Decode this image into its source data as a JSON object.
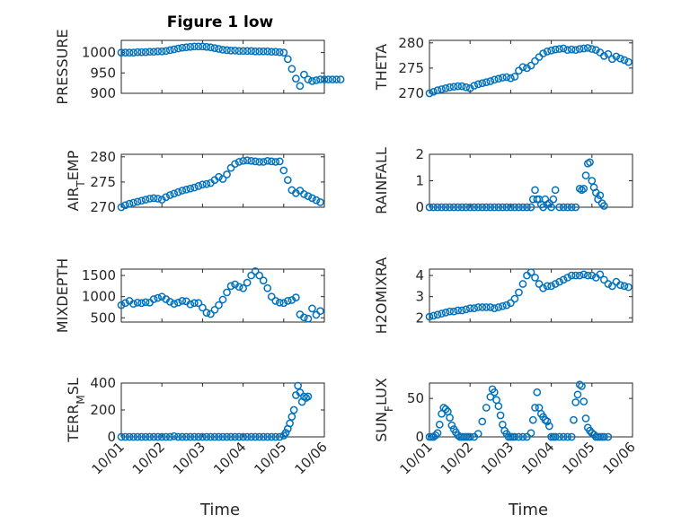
{
  "figure": {
    "title": "Figure 1 low",
    "xlabel_text": "Time"
  },
  "colors": {
    "series": "#0072bd",
    "axes": "#262626",
    "grid": "#c8c8c8"
  },
  "chart_data": [
    {
      "id": "pressure",
      "type": "scatter",
      "ylabel": "PRESSURE",
      "ylabel_parts": [
        {
          "t": "PRESSURE",
          "sub": false
        }
      ],
      "xlim": [
        0,
        5
      ],
      "ylim": [
        900,
        1030
      ],
      "yticks": [
        900,
        950,
        1000
      ],
      "yticklabels": [
        "900",
        "950",
        "1000"
      ],
      "xticks": [
        0,
        1,
        2,
        3,
        4,
        5
      ],
      "xticklabels": [
        "10/01",
        "10/02",
        "10/03",
        "10/04",
        "10/05",
        "10/06"
      ],
      "show_xticklabels": false,
      "title": "Figure 1 low",
      "x": [
        0,
        0.1,
        0.2,
        0.3,
        0.4,
        0.5,
        0.6,
        0.7,
        0.8,
        0.9,
        1.0,
        1.1,
        1.2,
        1.3,
        1.4,
        1.5,
        1.6,
        1.7,
        1.8,
        1.9,
        2.0,
        2.1,
        2.2,
        2.3,
        2.4,
        2.5,
        2.6,
        2.7,
        2.8,
        2.9,
        3.0,
        3.1,
        3.2,
        3.3,
        3.4,
        3.5,
        3.6,
        3.7,
        3.8,
        3.9,
        4.0,
        4.1,
        4.2,
        4.3,
        4.4,
        4.5,
        4.6,
        4.7,
        4.8,
        4.9,
        5.0,
        5.1,
        5.2,
        5.3,
        5.4
      ],
      "y": [
        1000,
        1000,
        1000,
        1000,
        1001,
        1001,
        1001,
        1002,
        1002,
        1003,
        1003,
        1004,
        1006,
        1008,
        1010,
        1012,
        1013,
        1014,
        1015,
        1015,
        1015,
        1014,
        1013,
        1011,
        1009,
        1007,
        1006,
        1005,
        1005,
        1004,
        1004,
        1004,
        1004,
        1003,
        1003,
        1003,
        1003,
        1002,
        1002,
        1001,
        1000,
        984,
        960,
        936,
        918,
        946,
        934,
        930,
        932,
        934,
        934,
        934,
        934,
        934,
        934
      ]
    },
    {
      "id": "theta",
      "type": "scatter",
      "ylabel": "THETA",
      "ylabel_parts": [
        {
          "t": "THETA",
          "sub": false
        }
      ],
      "xlim": [
        0,
        5
      ],
      "ylim": [
        270,
        280.5
      ],
      "yticks": [
        270,
        275,
        280
      ],
      "yticklabels": [
        "270",
        "275",
        "280"
      ],
      "xticks": [
        0,
        1,
        2,
        3,
        4,
        5
      ],
      "xticklabels": [
        "10/01",
        "10/02",
        "10/03",
        "10/04",
        "10/05",
        "10/06"
      ],
      "show_xticklabels": false,
      "x": [
        0,
        0.1,
        0.2,
        0.3,
        0.4,
        0.5,
        0.6,
        0.7,
        0.8,
        0.9,
        1.0,
        1.1,
        1.2,
        1.3,
        1.4,
        1.5,
        1.6,
        1.7,
        1.8,
        1.9,
        2.0,
        2.1,
        2.2,
        2.3,
        2.4,
        2.5,
        2.6,
        2.7,
        2.8,
        2.9,
        3.0,
        3.1,
        3.2,
        3.3,
        3.4,
        3.5,
        3.6,
        3.7,
        3.8,
        3.9,
        4.0,
        4.1,
        4.2,
        4.3,
        4.4,
        4.5,
        4.6,
        4.7,
        4.8,
        4.9
      ],
      "y": [
        270,
        270.3,
        270.6,
        270.8,
        271.0,
        271.2,
        271.3,
        271.4,
        271.4,
        271.2,
        271.0,
        271.5,
        271.8,
        272.0,
        272.2,
        272.4,
        272.7,
        272.9,
        273.1,
        273.2,
        273.0,
        273.3,
        274.5,
        275.2,
        275.0,
        275.5,
        276.4,
        277.2,
        277.9,
        278.3,
        278.5,
        278.7,
        278.8,
        278.9,
        278.6,
        278.7,
        278.6,
        278.8,
        278.9,
        279.0,
        278.8,
        278.6,
        278.1,
        277.4,
        277.8,
        276.8,
        277.3,
        276.9,
        276.6,
        276.2
      ]
    },
    {
      "id": "air_temp",
      "type": "scatter",
      "ylabel": "AIR_TEMP",
      "ylabel_parts": [
        {
          "t": "AIR",
          "sub": false
        },
        {
          "t": "T",
          "sub": true
        },
        {
          "t": "EMP",
          "sub": false
        }
      ],
      "xlim": [
        0,
        5
      ],
      "ylim": [
        270,
        280.5
      ],
      "yticks": [
        270,
        275,
        280
      ],
      "yticklabels": [
        "270",
        "275",
        "280"
      ],
      "xticks": [
        0,
        1,
        2,
        3,
        4,
        5
      ],
      "xticklabels": [
        "10/01",
        "10/02",
        "10/03",
        "10/04",
        "10/05",
        "10/06"
      ],
      "show_xticklabels": false,
      "x": [
        0,
        0.1,
        0.2,
        0.3,
        0.4,
        0.5,
        0.6,
        0.7,
        0.8,
        0.9,
        1.0,
        1.1,
        1.2,
        1.3,
        1.4,
        1.5,
        1.6,
        1.7,
        1.8,
        1.9,
        2.0,
        2.1,
        2.2,
        2.3,
        2.4,
        2.5,
        2.6,
        2.7,
        2.8,
        2.9,
        3.0,
        3.1,
        3.2,
        3.3,
        3.4,
        3.5,
        3.6,
        3.7,
        3.8,
        3.9,
        4.0,
        4.1,
        4.2,
        4.3,
        4.4,
        4.5,
        4.6,
        4.7,
        4.8,
        4.9
      ],
      "y": [
        270,
        270.4,
        270.7,
        270.9,
        271.1,
        271.3,
        271.5,
        271.7,
        271.8,
        271.7,
        271.5,
        272.0,
        272.4,
        272.7,
        273.0,
        273.3,
        273.5,
        273.7,
        273.9,
        274.2,
        274.5,
        274.6,
        274.8,
        275.4,
        276.0,
        275.6,
        276.5,
        277.8,
        278.6,
        279.0,
        279.2,
        279.3,
        279.2,
        279.1,
        279.0,
        279.0,
        279.2,
        279.1,
        279.0,
        279.1,
        277.3,
        275.4,
        273.4,
        272.8,
        273.3,
        272.6,
        272.2,
        271.8,
        271.4,
        271.0
      ]
    },
    {
      "id": "rainfall",
      "type": "scatter",
      "ylabel": "RAINFALL",
      "ylabel_parts": [
        {
          "t": "RAINFALL",
          "sub": false
        }
      ],
      "xlim": [
        0,
        5
      ],
      "ylim": [
        0,
        2
      ],
      "yticks": [
        0,
        1,
        2
      ],
      "yticklabels": [
        "0",
        "1",
        "2"
      ],
      "xticks": [
        0,
        1,
        2,
        3,
        4,
        5
      ],
      "xticklabels": [
        "10/01",
        "10/02",
        "10/03",
        "10/04",
        "10/05",
        "10/06"
      ],
      "show_xticklabels": false,
      "x": [
        0,
        0.1,
        0.2,
        0.3,
        0.4,
        0.5,
        0.6,
        0.7,
        0.8,
        0.9,
        1.0,
        1.1,
        1.2,
        1.3,
        1.4,
        1.5,
        1.6,
        1.7,
        1.8,
        1.9,
        2.0,
        2.1,
        2.2,
        2.3,
        2.4,
        2.5,
        2.55,
        2.6,
        2.65,
        2.7,
        2.75,
        2.8,
        2.85,
        2.9,
        2.95,
        3.0,
        3.05,
        3.1,
        3.2,
        3.3,
        3.4,
        3.5,
        3.6,
        3.7,
        3.75,
        3.8,
        3.85,
        3.9,
        3.95,
        4.0,
        4.05,
        4.1,
        4.15,
        4.2,
        4.25,
        4.3
      ],
      "y": [
        0,
        0,
        0,
        0,
        0,
        0,
        0,
        0,
        0,
        0,
        0,
        0,
        0,
        0,
        0,
        0,
        0,
        0,
        0,
        0,
        0,
        0,
        0,
        0,
        0,
        0,
        0.3,
        0.65,
        0.3,
        0.3,
        0.1,
        0,
        0.3,
        0.1,
        0.15,
        0,
        0.3,
        0.65,
        0,
        0,
        0,
        0,
        0,
        0.7,
        0.65,
        0.7,
        1.2,
        1.65,
        1.7,
        1.0,
        0.75,
        0.55,
        0.3,
        0.45,
        0.15,
        0.05
      ]
    },
    {
      "id": "mixdepth",
      "type": "scatter",
      "ylabel": "MIXDEPTH",
      "ylabel_parts": [
        {
          "t": "MIXDEPTH",
          "sub": false
        }
      ],
      "xlim": [
        0,
        5
      ],
      "ylim": [
        400,
        1650
      ],
      "yticks": [
        500,
        1000,
        1500
      ],
      "yticklabels": [
        "500",
        "1000",
        "1500"
      ],
      "xticks": [
        0,
        1,
        2,
        3,
        4,
        5
      ],
      "xticklabels": [
        "10/01",
        "10/02",
        "10/03",
        "10/04",
        "10/05",
        "10/06"
      ],
      "show_xticklabels": false,
      "x": [
        0,
        0.1,
        0.2,
        0.3,
        0.4,
        0.5,
        0.6,
        0.7,
        0.8,
        0.9,
        1.0,
        1.1,
        1.2,
        1.3,
        1.4,
        1.5,
        1.6,
        1.7,
        1.8,
        1.9,
        2.0,
        2.1,
        2.2,
        2.3,
        2.4,
        2.5,
        2.6,
        2.7,
        2.8,
        2.9,
        3.0,
        3.1,
        3.2,
        3.3,
        3.4,
        3.5,
        3.6,
        3.7,
        3.8,
        3.9,
        4.0,
        4.1,
        4.2,
        4.3,
        4.4,
        4.5,
        4.6,
        4.7,
        4.8,
        4.9
      ],
      "y": [
        800,
        850,
        900,
        830,
        860,
        850,
        870,
        860,
        940,
        970,
        1000,
        940,
        880,
        830,
        860,
        900,
        890,
        820,
        850,
        850,
        740,
        620,
        590,
        690,
        800,
        930,
        1100,
        1250,
        1290,
        1230,
        1200,
        1330,
        1500,
        1600,
        1500,
        1380,
        1200,
        1000,
        900,
        860,
        850,
        900,
        920,
        980,
        580,
        510,
        480,
        720,
        570,
        660
      ]
    },
    {
      "id": "h2omixra",
      "type": "scatter",
      "ylabel": "H2OMIXRA",
      "ylabel_parts": [
        {
          "t": "H2OMIXRA",
          "sub": false
        }
      ],
      "xlim": [
        0,
        5
      ],
      "ylim": [
        1.8,
        4.3
      ],
      "yticks": [
        2,
        3,
        4
      ],
      "yticklabels": [
        "2",
        "3",
        "4"
      ],
      "xticks": [
        0,
        1,
        2,
        3,
        4,
        5
      ],
      "xticklabels": [
        "10/01",
        "10/02",
        "10/03",
        "10/04",
        "10/05",
        "10/06"
      ],
      "show_xticklabels": false,
      "x": [
        0,
        0.1,
        0.2,
        0.3,
        0.4,
        0.5,
        0.6,
        0.7,
        0.8,
        0.9,
        1.0,
        1.1,
        1.2,
        1.3,
        1.4,
        1.5,
        1.6,
        1.7,
        1.8,
        1.9,
        2.0,
        2.1,
        2.2,
        2.3,
        2.4,
        2.5,
        2.6,
        2.7,
        2.8,
        2.9,
        3.0,
        3.1,
        3.2,
        3.3,
        3.4,
        3.5,
        3.6,
        3.7,
        3.8,
        3.9,
        4.0,
        4.1,
        4.2,
        4.3,
        4.4,
        4.5,
        4.6,
        4.7,
        4.8,
        4.9
      ],
      "y": [
        2.05,
        2.1,
        2.15,
        2.2,
        2.25,
        2.3,
        2.3,
        2.35,
        2.35,
        2.4,
        2.45,
        2.45,
        2.5,
        2.5,
        2.5,
        2.5,
        2.45,
        2.5,
        2.55,
        2.6,
        2.7,
        2.9,
        3.2,
        3.6,
        4.0,
        4.15,
        3.9,
        3.6,
        3.4,
        3.5,
        3.5,
        3.6,
        3.7,
        3.8,
        3.9,
        4.0,
        4.0,
        4.0,
        4.05,
        4.0,
        4.0,
        3.9,
        4.05,
        3.8,
        3.6,
        3.5,
        3.7,
        3.55,
        3.5,
        3.45
      ]
    },
    {
      "id": "terr_msl",
      "type": "scatter",
      "ylabel": "TERR_MSL",
      "ylabel_parts": [
        {
          "t": "TERR",
          "sub": false
        },
        {
          "t": "M",
          "sub": true
        },
        {
          "t": "SL",
          "sub": false
        }
      ],
      "xlim": [
        0,
        5
      ],
      "ylim": [
        0,
        400
      ],
      "yticks": [
        0,
        200,
        400
      ],
      "yticklabels": [
        "0",
        "200",
        "400"
      ],
      "xticks": [
        0,
        1,
        2,
        3,
        4,
        5
      ],
      "xticklabels": [
        "10/01",
        "10/02",
        "10/03",
        "10/04",
        "10/05",
        "10/06"
      ],
      "show_xticklabels": true,
      "x": [
        0,
        0.1,
        0.2,
        0.3,
        0.4,
        0.5,
        0.6,
        0.7,
        0.8,
        0.9,
        1.0,
        1.1,
        1.2,
        1.3,
        1.4,
        1.5,
        1.6,
        1.7,
        1.8,
        1.9,
        2.0,
        2.1,
        2.2,
        2.3,
        2.4,
        2.5,
        2.6,
        2.7,
        2.8,
        2.9,
        3.0,
        3.1,
        3.2,
        3.3,
        3.4,
        3.5,
        3.6,
        3.7,
        3.8,
        3.9,
        4.0,
        4.05,
        4.1,
        4.15,
        4.2,
        4.25,
        4.3,
        4.35,
        4.4,
        4.45,
        4.5,
        4.55,
        4.6
      ],
      "y": [
        0,
        0,
        0,
        0,
        0,
        0,
        0,
        0,
        0,
        0,
        0,
        0,
        0,
        5,
        0,
        0,
        0,
        0,
        0,
        0,
        0,
        0,
        0,
        0,
        0,
        0,
        0,
        0,
        0,
        0,
        0,
        0,
        0,
        0,
        0,
        0,
        0,
        0,
        0,
        0,
        10,
        30,
        60,
        100,
        150,
        200,
        310,
        380,
        330,
        260,
        300,
        290,
        300
      ]
    },
    {
      "id": "sun_flux",
      "type": "scatter",
      "ylabel": "SUN_FLUX",
      "ylabel_parts": [
        {
          "t": "SUN",
          "sub": false
        },
        {
          "t": "F",
          "sub": true
        },
        {
          "t": "LUX",
          "sub": false
        }
      ],
      "xlim": [
        0,
        5
      ],
      "ylim": [
        0,
        70
      ],
      "yticks": [
        0,
        50
      ],
      "yticklabels": [
        "0",
        "50"
      ],
      "xticks": [
        0,
        1,
        2,
        3,
        4,
        5
      ],
      "xticklabels": [
        "10/01",
        "10/02",
        "10/03",
        "10/04",
        "10/05",
        "10/06"
      ],
      "show_xticklabels": true,
      "x": [
        0,
        0.05,
        0.1,
        0.15,
        0.2,
        0.25,
        0.3,
        0.35,
        0.4,
        0.45,
        0.5,
        0.55,
        0.6,
        0.65,
        0.7,
        0.75,
        0.8,
        0.85,
        0.9,
        0.95,
        1.0,
        1.1,
        1.2,
        1.3,
        1.4,
        1.5,
        1.55,
        1.6,
        1.65,
        1.7,
        1.75,
        1.8,
        1.85,
        1.9,
        1.95,
        2.0,
        2.05,
        2.1,
        2.2,
        2.3,
        2.4,
        2.5,
        2.55,
        2.6,
        2.65,
        2.7,
        2.75,
        2.8,
        2.85,
        2.9,
        2.95,
        3.0,
        3.05,
        3.1,
        3.2,
        3.3,
        3.4,
        3.5,
        3.55,
        3.6,
        3.65,
        3.7,
        3.75,
        3.8,
        3.85,
        3.9,
        3.95,
        4.0,
        4.05,
        4.1,
        4.15,
        4.2,
        4.25,
        4.3,
        4.4
      ],
      "y": [
        0,
        0,
        0,
        2,
        5,
        16,
        30,
        38,
        36,
        33,
        25,
        15,
        10,
        6,
        2,
        0,
        0,
        0,
        0,
        0,
        0,
        0,
        4,
        20,
        38,
        52,
        62,
        58,
        48,
        40,
        28,
        16,
        8,
        4,
        0,
        0,
        0,
        0,
        0,
        0,
        0,
        5,
        22,
        38,
        58,
        38,
        30,
        26,
        22,
        20,
        14,
        0,
        0,
        0,
        0,
        0,
        0,
        0,
        22,
        45,
        55,
        68,
        66,
        46,
        24,
        12,
        8,
        5,
        3,
        0,
        0,
        0,
        0,
        0,
        0
      ]
    }
  ]
}
